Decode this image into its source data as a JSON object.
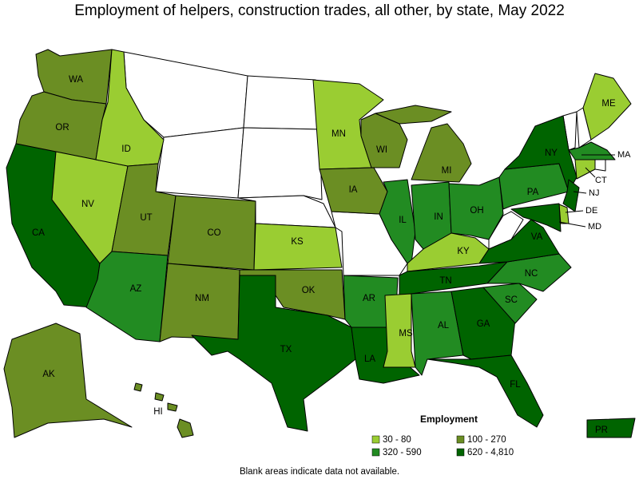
{
  "title": "Employment of helpers, construction trades, all other, by state, May 2022",
  "legend": {
    "title": "Employment",
    "items": [
      {
        "label": "30 - 80",
        "color": "#9acd32"
      },
      {
        "label": "100 - 270",
        "color": "#6b8e23"
      },
      {
        "label": "320 - 590",
        "color": "#228b22"
      },
      {
        "label": "620 - 4,810",
        "color": "#006400"
      }
    ]
  },
  "blank_color": "#ffffff",
  "states": [
    {
      "label": "WA",
      "group": 1
    },
    {
      "label": "OR",
      "group": 1
    },
    {
      "label": "CA",
      "group": 3
    },
    {
      "label": "NV",
      "group": 0
    },
    {
      "label": "ID",
      "group": 0
    },
    {
      "label": "UT",
      "group": 1
    },
    {
      "label": "AZ",
      "group": 2
    },
    {
      "label": "CO",
      "group": 1
    },
    {
      "label": "NM",
      "group": 1
    },
    {
      "label": "KS",
      "group": 0
    },
    {
      "label": "OK",
      "group": 1
    },
    {
      "label": "TX",
      "group": 3
    },
    {
      "label": "MN",
      "group": 0
    },
    {
      "label": "IA",
      "group": 1
    },
    {
      "label": "AR",
      "group": 2
    },
    {
      "label": "LA",
      "group": 3
    },
    {
      "label": "WI",
      "group": 1
    },
    {
      "label": "IL",
      "group": 2
    },
    {
      "label": "MI",
      "group": 1
    },
    {
      "label": "IN",
      "group": 2
    },
    {
      "label": "OH",
      "group": 2
    },
    {
      "label": "KY",
      "group": 0
    },
    {
      "label": "TN",
      "group": 3
    },
    {
      "label": "MS",
      "group": 0
    },
    {
      "label": "AL",
      "group": 2
    },
    {
      "label": "GA",
      "group": 3
    },
    {
      "label": "FL",
      "group": 3
    },
    {
      "label": "SC",
      "group": 2
    },
    {
      "label": "NC",
      "group": 2
    },
    {
      "label": "VA",
      "group": 3
    },
    {
      "label": "PA",
      "group": 2
    },
    {
      "label": "NY",
      "group": 3
    },
    {
      "label": "ME",
      "group": 0
    },
    {
      "label": "MA",
      "group": 2
    },
    {
      "label": "CT",
      "group": 0
    },
    {
      "label": "NJ",
      "group": 3
    },
    {
      "label": "DE",
      "group": 0
    },
    {
      "label": "MD",
      "group": 3
    },
    {
      "label": "AK",
      "group": 1
    },
    {
      "label": "HI",
      "group": 1
    },
    {
      "label": "PR",
      "group": 3
    }
  ],
  "note": "Blank areas indicate data not available."
}
